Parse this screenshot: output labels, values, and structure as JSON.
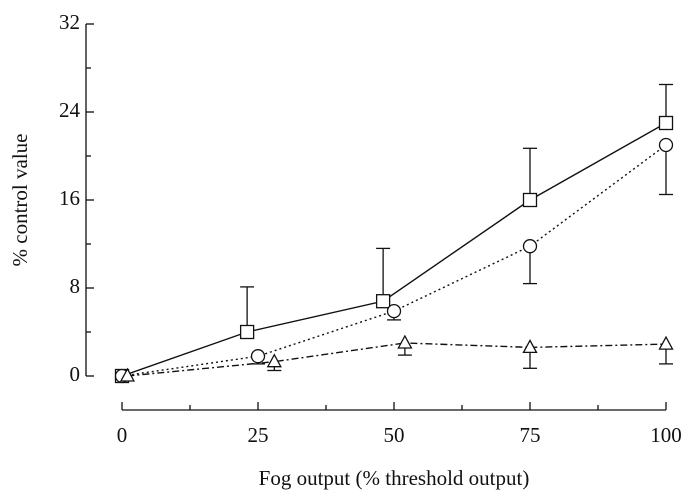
{
  "chart_data": {
    "type": "line",
    "x_label": "Fog output (% threshold output)",
    "y_label": "% control value",
    "xlim": [
      0,
      100
    ],
    "xticks": [
      0,
      25,
      50,
      75,
      100
    ],
    "xminorticks": [
      12.5,
      37.5,
      62.5,
      87.5
    ],
    "ylim": [
      0,
      32
    ],
    "yticks": [
      0,
      8,
      16,
      24,
      32
    ],
    "yminorticks": [
      4,
      12,
      20,
      28
    ],
    "series": [
      {
        "marker": "square",
        "dash": "solid",
        "color": "#111111",
        "error_direction": "up",
        "x": [
          0,
          23,
          48,
          75,
          100
        ],
        "values": [
          0,
          4,
          6.8,
          16,
          23
        ],
        "errors": [
          null,
          4.1,
          4.8,
          4.7,
          3.5
        ]
      },
      {
        "marker": "circle",
        "dash": "dotted",
        "color": "#111111",
        "error_direction": "down",
        "x": [
          0,
          25,
          50,
          75,
          100
        ],
        "values": [
          0,
          1.8,
          5.9,
          11.8,
          21
        ],
        "errors": [
          null,
          0.7,
          0.8,
          3.4,
          4.5
        ]
      },
      {
        "marker": "triangle",
        "dash": "dashdot",
        "color": "#111111",
        "error_direction": "down",
        "x": [
          1,
          28,
          52,
          75,
          100
        ],
        "values": [
          0,
          1.3,
          3.0,
          2.6,
          2.9
        ],
        "errors": [
          null,
          0.8,
          1.1,
          1.9,
          1.8
        ]
      }
    ]
  }
}
